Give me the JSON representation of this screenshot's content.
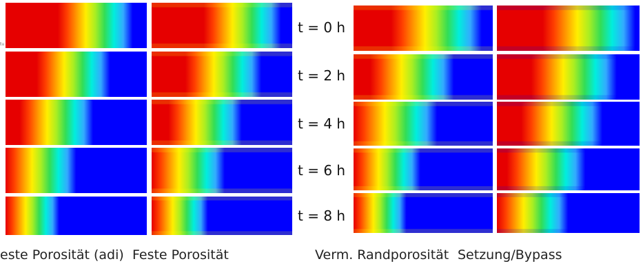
{
  "time_labels": [
    "t = 0 h",
    "t = 2 h",
    "t = 4 h",
    "t = 6 h",
    "t = 8 h"
  ],
  "captions": {
    "col1": "este Porosität (adi)",
    "col2": "Feste Porosität",
    "col3": "Verm. Randporosität",
    "col4": "Setzung/Bypass"
  },
  "tiny_mark": "tu",
  "colormap": [
    "#e60000",
    "#ff4000",
    "#ff9900",
    "#ffee00",
    "#aaee22",
    "#33dd55",
    "#00eedd",
    "#33aaff",
    "#0000ff"
  ]
}
